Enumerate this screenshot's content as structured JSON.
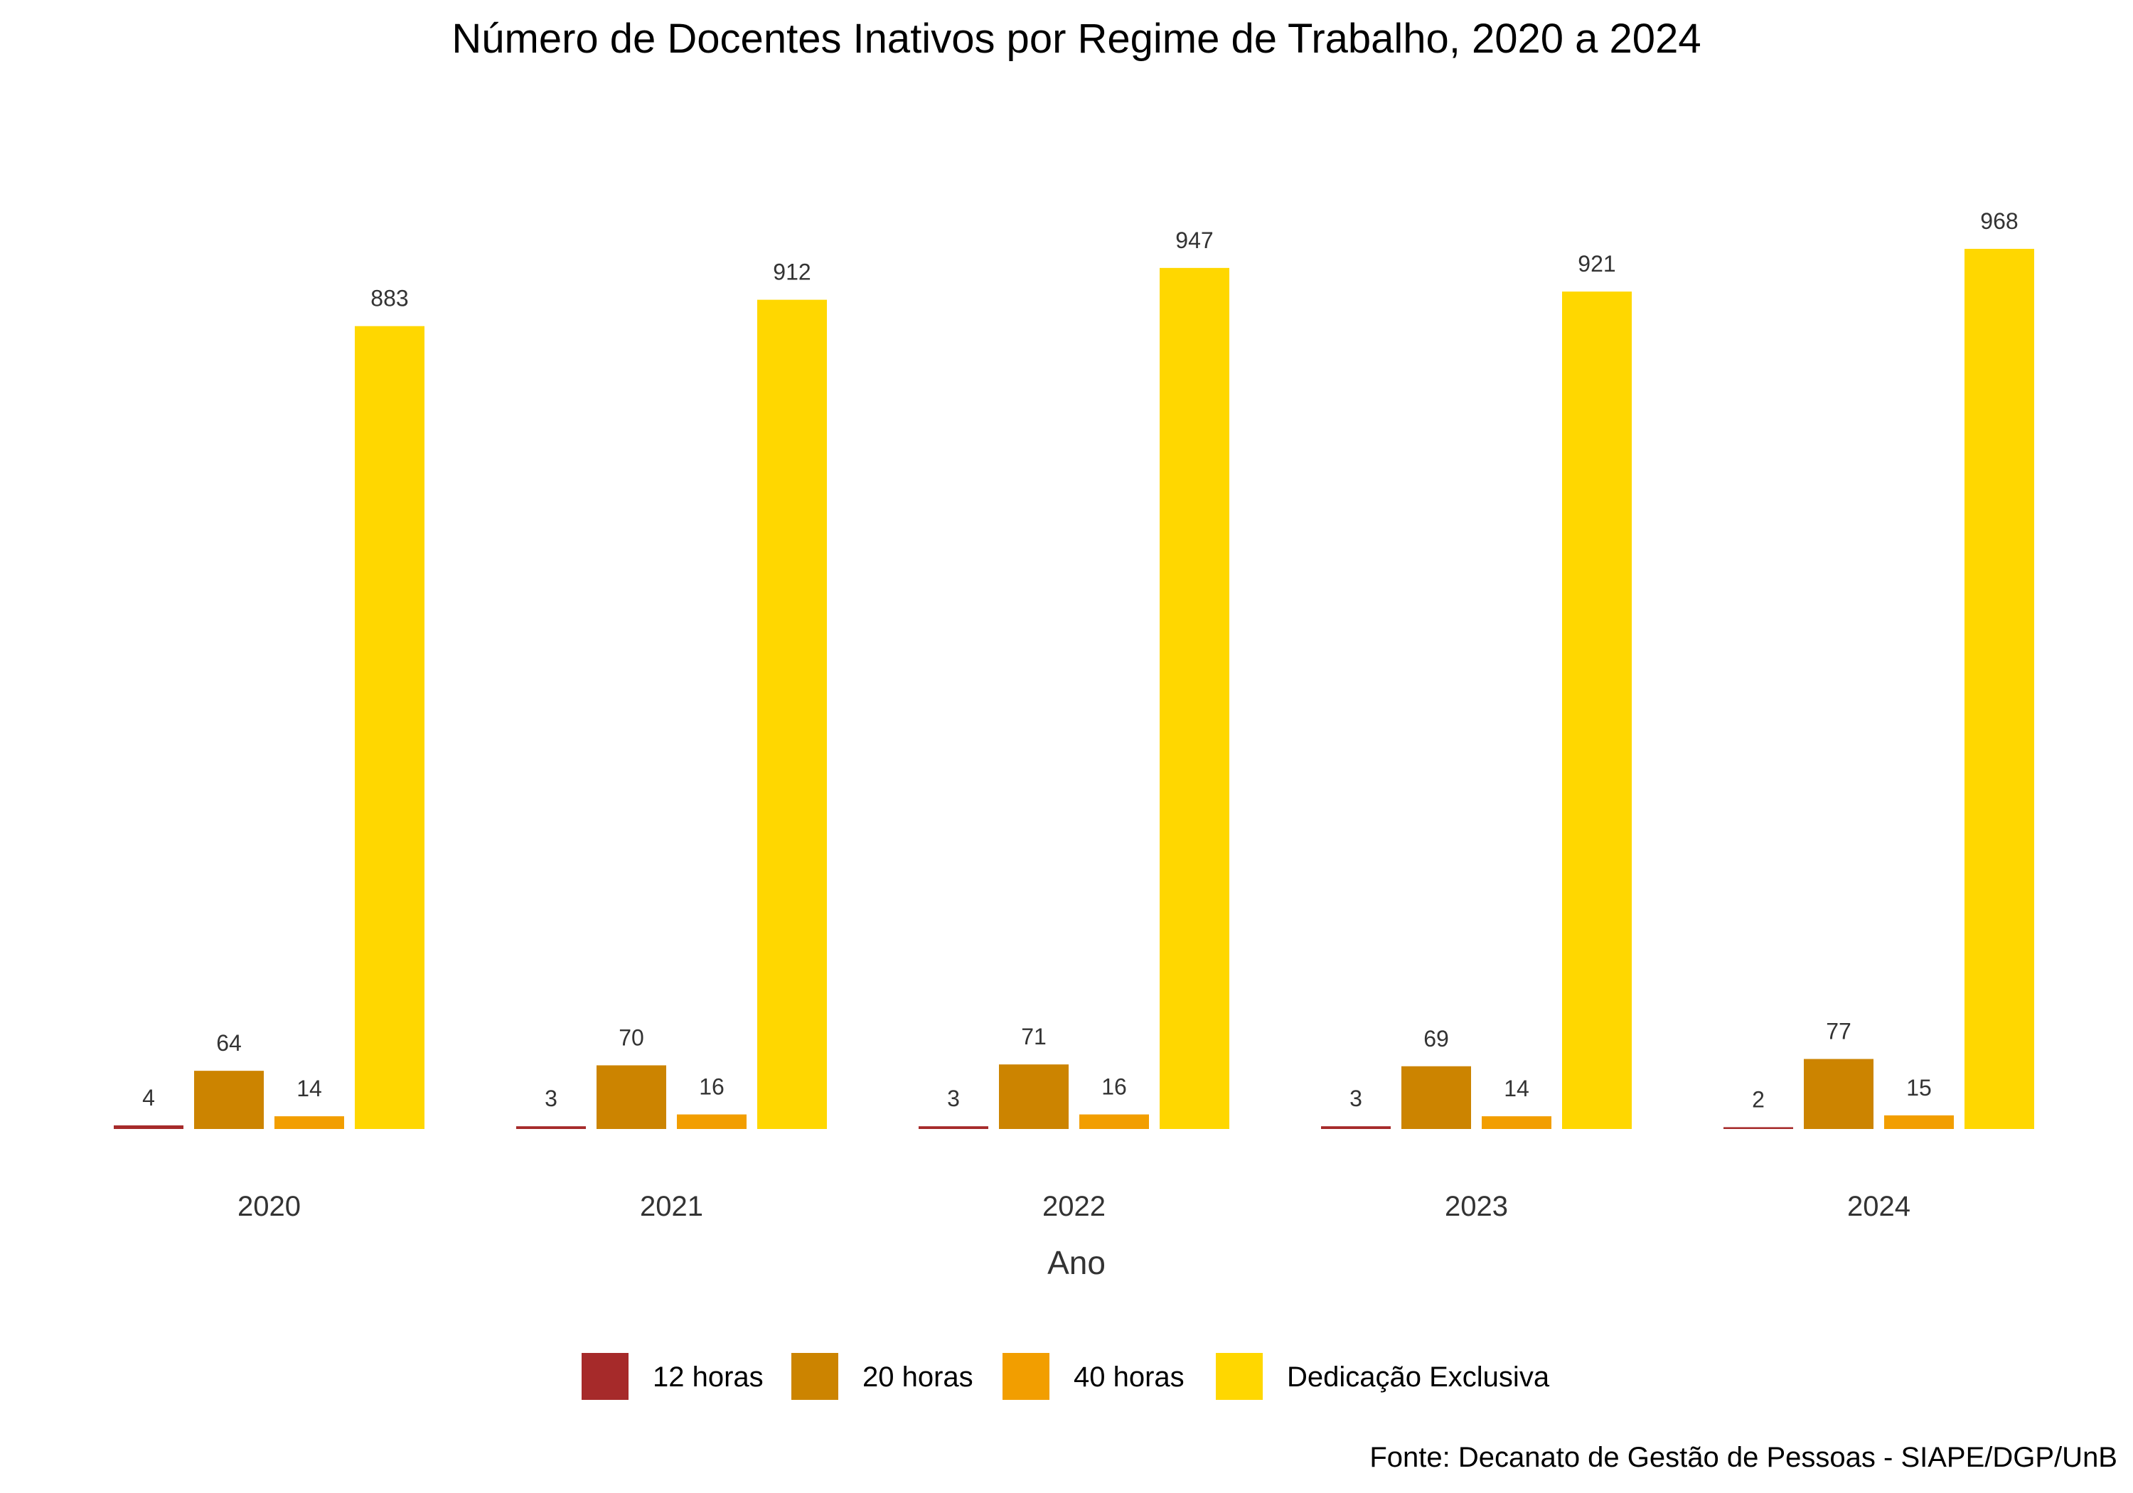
{
  "chart_data": {
    "type": "bar",
    "title": "Número de Docentes Inativos por Regime de Trabalho, 2020 a 2024",
    "xlabel": "Ano",
    "ylabel": "",
    "categories": [
      "2020",
      "2021",
      "2022",
      "2023",
      "2024"
    ],
    "series": [
      {
        "name": "12 horas",
        "color": "#A62A2A",
        "values": [
          4,
          3,
          3,
          3,
          2
        ]
      },
      {
        "name": "20 horas",
        "color": "#CC8400",
        "values": [
          64,
          70,
          71,
          69,
          77
        ]
      },
      {
        "name": "40 horas",
        "color": "#F29E00",
        "values": [
          14,
          16,
          16,
          14,
          15
        ]
      },
      {
        "name": "Dedicação Exclusiva",
        "color": "#FFD700",
        "values": [
          883,
          912,
          947,
          921,
          968
        ]
      }
    ],
    "ylim": [
      0,
      968
    ],
    "grid": false,
    "legend_position": "bottom",
    "caption": "Fonte: Decanato de Gestão de Pessoas - SIAPE/DGP/UnB"
  }
}
